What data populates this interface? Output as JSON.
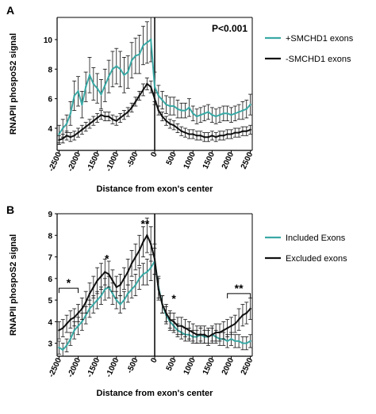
{
  "chart_data": [
    {
      "type": "line",
      "panel": "A",
      "ylabel": "RNAPII phospoS2 signal",
      "xlabel": "Distance from exon's center",
      "xlim": [
        -2550,
        2550
      ],
      "ylim": [
        2.5,
        11.5
      ],
      "xticks": [
        -2500,
        -2000,
        -1500,
        -1000,
        -500,
        0,
        500,
        1000,
        1500,
        2000,
        2500
      ],
      "yticks": [
        4,
        6,
        8,
        10
      ],
      "annotation": "P<0.001",
      "legend_position": "right",
      "series": [
        {
          "name": "+SMCHD1 exons",
          "color": "#3aa9a5",
          "x": [
            -2500,
            -2400,
            -2300,
            -2200,
            -2100,
            -2000,
            -1900,
            -1800,
            -1700,
            -1600,
            -1500,
            -1400,
            -1300,
            -1200,
            -1100,
            -1000,
            -900,
            -800,
            -700,
            -600,
            -500,
            -400,
            -300,
            -200,
            -100,
            0,
            100,
            200,
            300,
            400,
            500,
            600,
            700,
            800,
            900,
            1000,
            1100,
            1200,
            1300,
            1400,
            1500,
            1600,
            1700,
            1800,
            1900,
            2000,
            2100,
            2200,
            2300,
            2400,
            2500
          ],
          "values": [
            3.6,
            4.0,
            4.3,
            5.0,
            6.2,
            6.5,
            5.6,
            6.8,
            7.6,
            7.0,
            6.7,
            6.3,
            6.9,
            7.5,
            8.0,
            8.2,
            8.0,
            7.6,
            7.8,
            8.6,
            8.9,
            9.0,
            9.6,
            9.8,
            10.0,
            6.8,
            6.2,
            5.9,
            5.6,
            5.5,
            5.5,
            5.3,
            5.2,
            5.2,
            5.4,
            5.0,
            4.8,
            4.9,
            5.0,
            5.1,
            4.9,
            4.8,
            4.9,
            5.0,
            5.0,
            4.9,
            5.0,
            5.1,
            5.2,
            5.3,
            5.6
          ],
          "errors": [
            0.6,
            0.6,
            0.6,
            0.8,
            1.0,
            1.0,
            0.9,
            1.0,
            1.2,
            1.1,
            1.0,
            1.0,
            1.1,
            1.1,
            1.2,
            1.2,
            1.2,
            1.2,
            1.1,
            1.2,
            1.2,
            1.3,
            1.3,
            1.4,
            1.5,
            1.0,
            0.7,
            0.6,
            0.6,
            0.6,
            0.6,
            0.6,
            0.5,
            0.5,
            0.6,
            0.5,
            0.5,
            0.5,
            0.5,
            0.5,
            0.5,
            0.5,
            0.5,
            0.5,
            0.5,
            0.5,
            0.5,
            0.5,
            0.6,
            0.6,
            0.7
          ]
        },
        {
          "name": "-SMCHD1 exons",
          "color": "#111111",
          "x": [
            -2500,
            -2400,
            -2300,
            -2200,
            -2100,
            -2000,
            -1900,
            -1800,
            -1700,
            -1600,
            -1500,
            -1400,
            -1300,
            -1200,
            -1100,
            -1000,
            -900,
            -800,
            -700,
            -600,
            -500,
            -400,
            -300,
            -200,
            -100,
            0,
            100,
            200,
            300,
            400,
            500,
            600,
            700,
            800,
            900,
            1000,
            1100,
            1200,
            1300,
            1400,
            1500,
            1600,
            1700,
            1800,
            1900,
            2000,
            2100,
            2200,
            2300,
            2400,
            2500
          ],
          "values": [
            3.2,
            3.3,
            3.5,
            3.4,
            3.5,
            3.7,
            3.9,
            4.1,
            4.3,
            4.5,
            4.7,
            4.9,
            4.8,
            4.8,
            4.6,
            4.5,
            4.7,
            4.9,
            5.1,
            5.4,
            5.8,
            6.2,
            6.6,
            7.0,
            6.8,
            6.0,
            5.2,
            4.8,
            4.5,
            4.3,
            4.2,
            4.0,
            3.8,
            3.7,
            3.6,
            3.6,
            3.5,
            3.5,
            3.4,
            3.4,
            3.5,
            3.4,
            3.5,
            3.5,
            3.6,
            3.6,
            3.7,
            3.7,
            3.8,
            3.8,
            3.9
          ],
          "errors": [
            0.3,
            0.3,
            0.3,
            0.3,
            0.3,
            0.3,
            0.3,
            0.3,
            0.3,
            0.3,
            0.3,
            0.3,
            0.3,
            0.3,
            0.3,
            0.3,
            0.3,
            0.3,
            0.3,
            0.3,
            0.3,
            0.3,
            0.4,
            0.4,
            0.4,
            0.4,
            0.3,
            0.3,
            0.3,
            0.3,
            0.3,
            0.3,
            0.3,
            0.3,
            0.3,
            0.3,
            0.3,
            0.3,
            0.3,
            0.3,
            0.3,
            0.3,
            0.3,
            0.3,
            0.3,
            0.3,
            0.3,
            0.3,
            0.3,
            0.3,
            0.3
          ]
        }
      ],
      "significance": []
    },
    {
      "type": "line",
      "panel": "B",
      "ylabel": "RNAPII phospoS2 signal",
      "xlabel": "Distance from exon's center",
      "xlim": [
        -2550,
        2550
      ],
      "ylim": [
        2.4,
        9.0
      ],
      "xticks": [
        -2500,
        -2000,
        -1500,
        -1000,
        -500,
        0,
        500,
        1000,
        1500,
        2000,
        2500
      ],
      "yticks": [
        3,
        4,
        5,
        6,
        7,
        8,
        9
      ],
      "legend_position": "right",
      "series": [
        {
          "name": "Included Exons",
          "color": "#3aa9a5",
          "x": [
            -2500,
            -2400,
            -2300,
            -2200,
            -2100,
            -2000,
            -1900,
            -1800,
            -1700,
            -1600,
            -1500,
            -1400,
            -1300,
            -1200,
            -1100,
            -1000,
            -900,
            -800,
            -700,
            -600,
            -500,
            -400,
            -300,
            -200,
            -100,
            0,
            100,
            200,
            300,
            400,
            500,
            600,
            700,
            800,
            900,
            1000,
            1100,
            1200,
            1300,
            1400,
            1500,
            1600,
            1700,
            1800,
            1900,
            2000,
            2100,
            2200,
            2300,
            2400,
            2500
          ],
          "values": [
            2.8,
            2.7,
            2.9,
            3.2,
            3.6,
            3.8,
            4.0,
            4.3,
            4.6,
            4.8,
            5.0,
            5.2,
            5.5,
            5.6,
            5.3,
            5.0,
            4.8,
            5.0,
            5.3,
            5.5,
            5.7,
            6.0,
            6.2,
            6.3,
            6.5,
            6.8,
            5.6,
            4.8,
            4.3,
            4.0,
            3.8,
            3.6,
            3.5,
            3.4,
            3.4,
            3.3,
            3.3,
            3.4,
            3.3,
            3.3,
            3.4,
            3.3,
            3.2,
            3.2,
            3.1,
            3.2,
            3.1,
            3.1,
            3.0,
            3.0,
            3.1
          ],
          "errors": [
            0.3,
            0.3,
            0.3,
            0.3,
            0.4,
            0.4,
            0.4,
            0.4,
            0.4,
            0.4,
            0.4,
            0.4,
            0.5,
            0.5,
            0.5,
            0.4,
            0.4,
            0.4,
            0.4,
            0.4,
            0.5,
            0.5,
            0.5,
            0.6,
            0.6,
            0.6,
            0.5,
            0.4,
            0.4,
            0.4,
            0.3,
            0.3,
            0.3,
            0.3,
            0.3,
            0.3,
            0.3,
            0.3,
            0.3,
            0.3,
            0.3,
            0.3,
            0.3,
            0.3,
            0.3,
            0.3,
            0.3,
            0.3,
            0.3,
            0.3,
            0.3
          ]
        },
        {
          "name": "Excluded exons",
          "color": "#111111",
          "x": [
            -2500,
            -2400,
            -2300,
            -2200,
            -2100,
            -2000,
            -1900,
            -1800,
            -1700,
            -1600,
            -1500,
            -1400,
            -1300,
            -1200,
            -1100,
            -1000,
            -900,
            -800,
            -700,
            -600,
            -500,
            -400,
            -300,
            -200,
            -100,
            0,
            100,
            200,
            300,
            400,
            500,
            600,
            700,
            800,
            900,
            1000,
            1100,
            1200,
            1300,
            1400,
            1500,
            1600,
            1700,
            1800,
            1900,
            2000,
            2100,
            2200,
            2300,
            2400,
            2500
          ],
          "values": [
            3.6,
            3.7,
            3.9,
            4.1,
            4.2,
            4.4,
            4.6,
            4.9,
            5.3,
            5.6,
            5.9,
            6.1,
            6.3,
            6.2,
            5.9,
            5.6,
            5.7,
            6.0,
            6.3,
            6.7,
            7.0,
            7.3,
            7.7,
            8.0,
            7.6,
            6.9,
            5.5,
            4.8,
            4.4,
            4.1,
            4.0,
            3.8,
            3.8,
            3.7,
            3.6,
            3.5,
            3.4,
            3.4,
            3.4,
            3.3,
            3.4,
            3.5,
            3.5,
            3.6,
            3.7,
            3.8,
            3.9,
            4.1,
            4.3,
            4.4,
            4.6
          ],
          "errors": [
            0.4,
            0.4,
            0.4,
            0.4,
            0.4,
            0.4,
            0.5,
            0.5,
            0.5,
            0.5,
            0.6,
            0.6,
            0.6,
            0.6,
            0.5,
            0.5,
            0.5,
            0.5,
            0.6,
            0.6,
            0.6,
            0.7,
            0.7,
            0.8,
            0.8,
            0.7,
            0.5,
            0.4,
            0.4,
            0.4,
            0.4,
            0.4,
            0.4,
            0.4,
            0.4,
            0.4,
            0.4,
            0.4,
            0.4,
            0.4,
            0.4,
            0.4,
            0.4,
            0.4,
            0.4,
            0.4,
            0.4,
            0.5,
            0.5,
            0.5,
            0.5
          ]
        }
      ],
      "significance": [
        {
          "label": "*",
          "x_start": -2500,
          "x_end": -2000,
          "y": 5.55
        },
        {
          "label": "*",
          "x": -1250,
          "y": 6.75
        },
        {
          "label": "**",
          "x": -250,
          "y": 8.35
        },
        {
          "label": "*",
          "x": 500,
          "x_end": 1000,
          "y": 4.9
        },
        {
          "label": "**",
          "x_start": 1900,
          "x_end": 2500,
          "y": 5.3
        }
      ]
    }
  ]
}
